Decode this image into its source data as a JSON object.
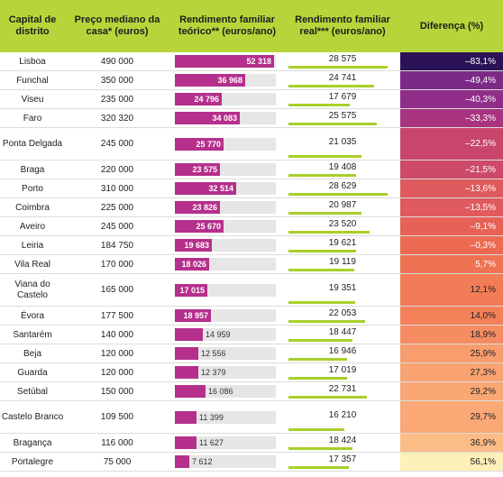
{
  "headers": {
    "city": "Capital de distrito",
    "price": "Preço mediano da casa* (euros)",
    "theoretical": "Rendimento familiar teórico** (euros/ano)",
    "real": "Rendimento familiar real*** (euros/ano)",
    "diff": "Diferença (%)"
  },
  "chart_data": {
    "type": "table",
    "columns": [
      "Capital de distrito",
      "Preço mediano da casa* (euros)",
      "Rendimento familiar teórico** (euros/ano)",
      "Rendimento familiar real*** (euros/ano)",
      "Diferença (%)"
    ],
    "rows": [
      {
        "city": "Lisboa",
        "price": "490 000",
        "theoretical": "52 318",
        "theoretical_value": 52318,
        "real": "28 575",
        "real_value": 28575,
        "diff": "–83,1%",
        "color": "#2b1155"
      },
      {
        "city": "Funchal",
        "price": "350 000",
        "theoretical": "36 968",
        "theoretical_value": 36968,
        "real": "24 741",
        "real_value": 24741,
        "diff": "–49,4%",
        "color": "#7b2a86"
      },
      {
        "city": "Viseu",
        "price": "235 000",
        "theoretical": "24 796",
        "theoretical_value": 24796,
        "real": "17 679",
        "real_value": 17679,
        "diff": "–40,3%",
        "color": "#8f2d88"
      },
      {
        "city": "Faro",
        "price": "320 320",
        "theoretical": "34 083",
        "theoretical_value": 34083,
        "real": "25 575",
        "real_value": 25575,
        "diff": "–33,3%",
        "color": "#a8337f"
      },
      {
        "city": "Ponta Delgada",
        "price": "245 000",
        "theoretical": "25 770",
        "theoretical_value": 25770,
        "real": "21 035",
        "real_value": 21035,
        "diff": "–22,5%",
        "color": "#c8466c"
      },
      {
        "city": "Braga",
        "price": "220 000",
        "theoretical": "23 575",
        "theoretical_value": 23575,
        "real": "19 408",
        "real_value": 19408,
        "diff": "–21,5%",
        "color": "#cd4a69"
      },
      {
        "city": "Porto",
        "price": "310 000",
        "theoretical": "32 514",
        "theoretical_value": 32514,
        "real": "28 629",
        "real_value": 28629,
        "diff": "–13,6%",
        "color": "#df5a5d"
      },
      {
        "city": "Coimbra",
        "price": "225 000",
        "theoretical": "23 826",
        "theoretical_value": 23826,
        "real": "20 987",
        "real_value": 20987,
        "diff": "–13,5%",
        "color": "#df5b5d"
      },
      {
        "city": "Aveiro",
        "price": "245 000",
        "theoretical": "25 670",
        "theoretical_value": 25670,
        "real": "23 520",
        "real_value": 23520,
        "diff": "–9,1%",
        "color": "#e66257"
      },
      {
        "city": "Leiria",
        "price": "184 750",
        "theoretical": "19 683",
        "theoretical_value": 19683,
        "real": "19 621",
        "real_value": 19621,
        "diff": "–0,3%",
        "color": "#ec6a52"
      },
      {
        "city": "Vila Real",
        "price": "170 000",
        "theoretical": "18 026",
        "theoretical_value": 18026,
        "real": "19 119",
        "real_value": 19119,
        "diff": "5,7%",
        "color": "#ef7352"
      },
      {
        "city": "Viana do Castelo",
        "price": "165 000",
        "theoretical": "17 015",
        "theoretical_value": 17015,
        "real": "19 351",
        "real_value": 19351,
        "diff": "12,1%",
        "color": "#f27c57"
      },
      {
        "city": "Évora",
        "price": "177 500",
        "theoretical": "18 957",
        "theoretical_value": 18957,
        "real": "22 053",
        "real_value": 22053,
        "diff": "14,0%",
        "color": "#f4805a"
      },
      {
        "city": "Santarém",
        "price": "140 000",
        "theoretical": "14 959",
        "theoretical_value": 14959,
        "real": "18 447",
        "real_value": 18447,
        "diff": "18,9%",
        "color": "#f68c62"
      },
      {
        "city": "Beja",
        "price": "120 000",
        "theoretical": "12 556",
        "theoretical_value": 12556,
        "real": "16 946",
        "real_value": 16946,
        "diff": "25,9%",
        "color": "#f89d6e"
      },
      {
        "city": "Guarda",
        "price": "120 000",
        "theoretical": "12 379",
        "theoretical_value": 12379,
        "real": "17 019",
        "real_value": 17019,
        "diff": "27,3%",
        "color": "#f9a372"
      },
      {
        "city": "Setúbal",
        "price": "150 000",
        "theoretical": "16 086",
        "theoretical_value": 16086,
        "real": "22 731",
        "real_value": 22731,
        "diff": "29,2%",
        "color": "#f9a775"
      },
      {
        "city": "Castelo Branco",
        "price": "109 500",
        "theoretical": "11 399",
        "theoretical_value": 11399,
        "real": "16 210",
        "real_value": 16210,
        "diff": "29,7%",
        "color": "#faa876"
      },
      {
        "city": "Bragança",
        "price": "116 000",
        "theoretical": "11 627",
        "theoretical_value": 11627,
        "real": "18 424",
        "real_value": 18424,
        "diff": "36,9%",
        "color": "#fbbc86"
      },
      {
        "city": "Portalegre",
        "price": "75 000",
        "theoretical": "7 612",
        "theoretical_value": 7612,
        "real": "17 357",
        "real_value": 17357,
        "diff": "56,1%",
        "color": "#fdf0b8"
      }
    ],
    "theoretical_max": 52318,
    "real_max": 28629
  }
}
